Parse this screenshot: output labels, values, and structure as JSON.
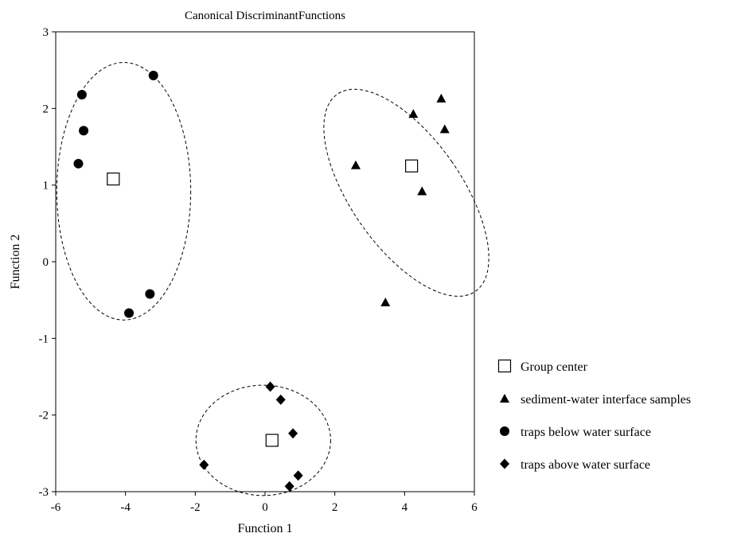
{
  "chart_data": {
    "type": "scatter",
    "title": "Canonical DiscriminantFunctions",
    "xlabel": "Function 1",
    "ylabel": "Function 2",
    "xlim": [
      -6,
      6
    ],
    "ylim": [
      -3,
      3
    ],
    "xticks": [
      -6,
      -4,
      -2,
      0,
      2,
      4,
      6
    ],
    "yticks": [
      -3,
      -2,
      -1,
      0,
      1,
      2,
      3
    ],
    "grid": false,
    "legend_position": "right",
    "series": [
      {
        "name": "Group center",
        "marker": "open-square",
        "points": [
          [
            -4.35,
            1.08
          ],
          [
            4.2,
            1.25
          ],
          [
            0.2,
            -2.33
          ]
        ]
      },
      {
        "name": "sediment-water interface samples",
        "marker": "triangle",
        "points": [
          [
            4.25,
            1.93
          ],
          [
            5.05,
            2.13
          ],
          [
            5.15,
            1.73
          ],
          [
            2.6,
            1.26
          ],
          [
            4.5,
            0.92
          ],
          [
            3.45,
            -0.53
          ]
        ]
      },
      {
        "name": "traps below water surface",
        "marker": "circle",
        "points": [
          [
            -3.2,
            2.43
          ],
          [
            -5.25,
            2.18
          ],
          [
            -5.2,
            1.71
          ],
          [
            -5.35,
            1.28
          ],
          [
            -3.3,
            -0.42
          ],
          [
            -3.9,
            -0.67
          ]
        ]
      },
      {
        "name": "traps above water surface",
        "marker": "diamond",
        "points": [
          [
            0.15,
            -1.63
          ],
          [
            0.45,
            -1.8
          ],
          [
            0.8,
            -2.24
          ],
          [
            -1.75,
            -2.65
          ],
          [
            0.95,
            -2.79
          ],
          [
            0.7,
            -2.93
          ]
        ]
      }
    ],
    "group_ellipses": [
      {
        "group": "traps below water surface",
        "center": [
          -4.05,
          0.92
        ],
        "radius_x": 1.92,
        "radius_y": 1.68,
        "tilt_deg": 0
      },
      {
        "group": "sediment-water interface samples",
        "center": [
          4.05,
          0.9
        ],
        "radius_x": 1.58,
        "radius_y": 1.57,
        "tilt_deg": 35
      },
      {
        "group": "traps above water surface",
        "center": [
          -0.05,
          -2.33
        ],
        "radius_x": 1.93,
        "radius_y": 0.72,
        "tilt_deg": 0
      }
    ]
  }
}
